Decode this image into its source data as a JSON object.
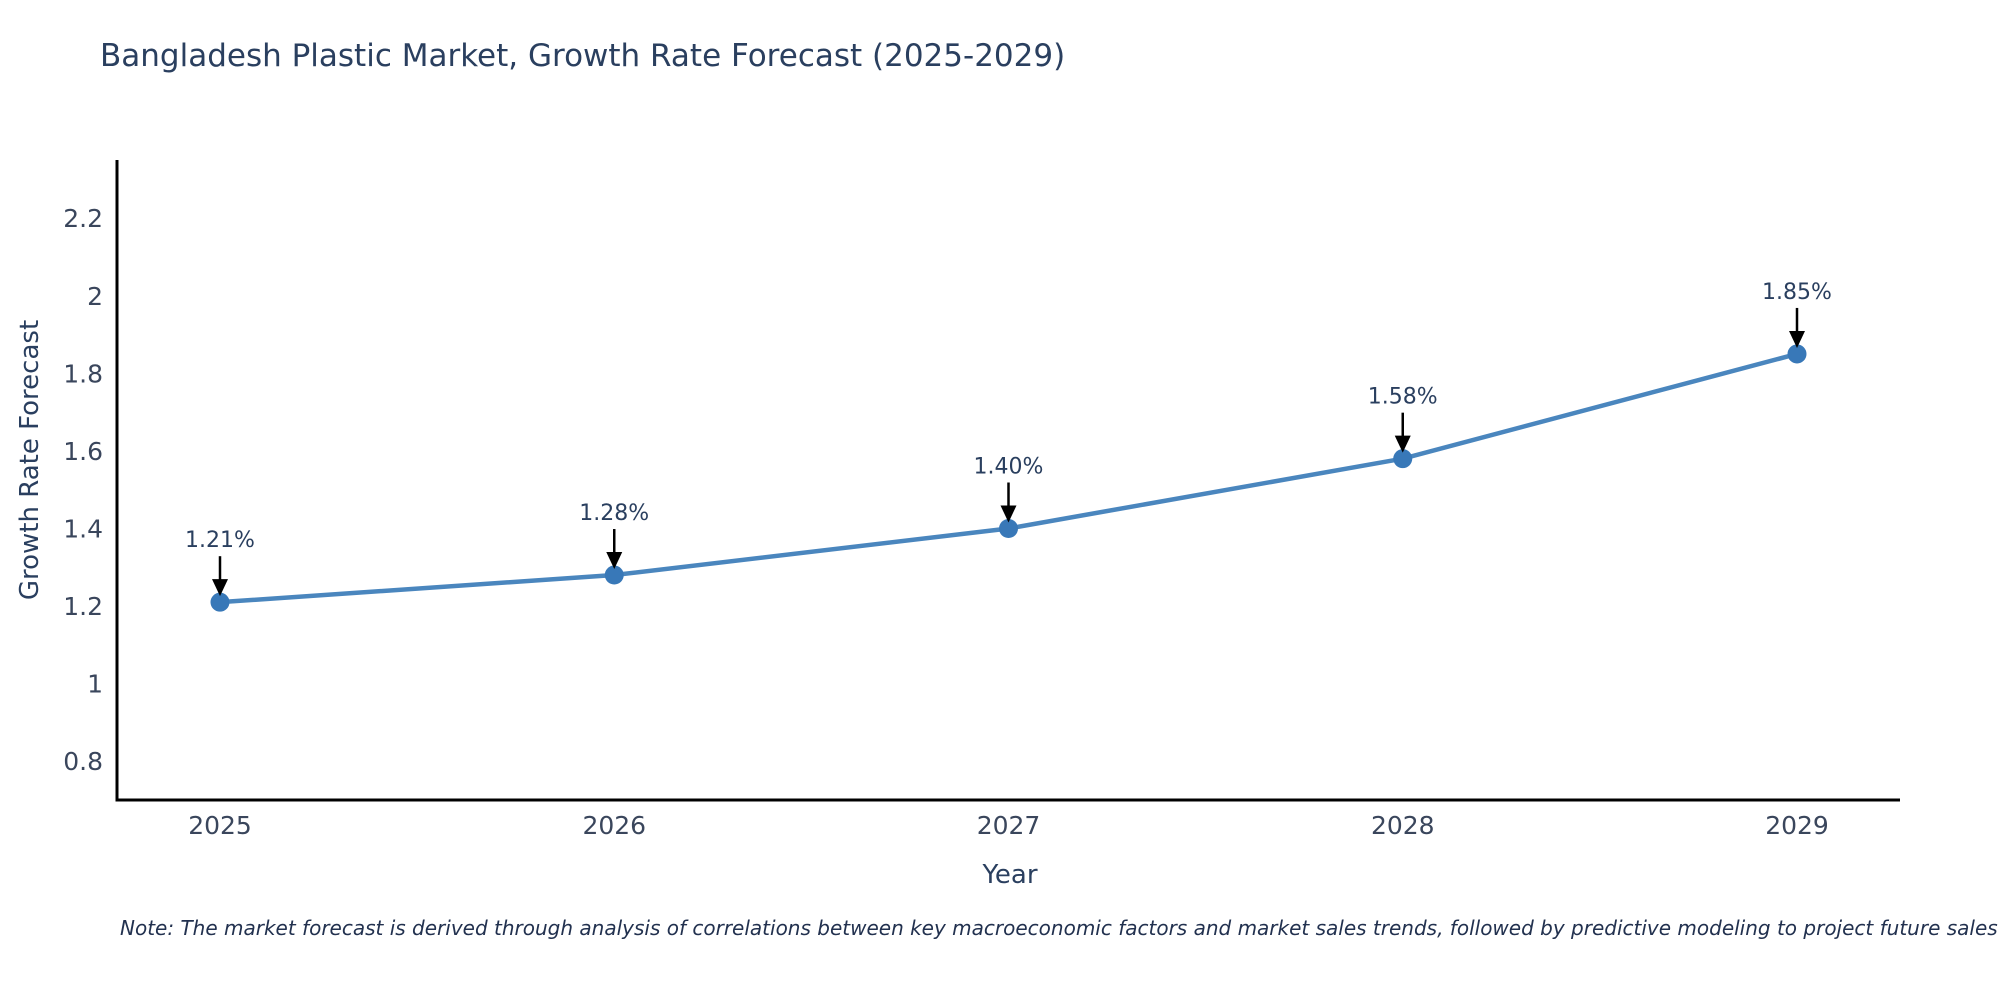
{
  "title": "Bangladesh Plastic Market, Growth Rate Forecast (2025-2029)",
  "note": "Note: The market forecast is derived through analysis of correlations between key macroeconomic factors and market sales trends, followed by predictive modeling to project future sales",
  "chart_data": {
    "type": "line",
    "title": "Bangladesh Plastic Market, Growth Rate Forecast (2025-2029)",
    "xlabel": "Year",
    "ylabel": "Growth Rate Forecast",
    "x": [
      2025,
      2026,
      2027,
      2028,
      2029
    ],
    "xtick_labels": [
      "2025",
      "2026",
      "2027",
      "2028",
      "2029"
    ],
    "series": [
      {
        "name": "Growth Rate Forecast",
        "values": [
          1.21,
          1.28,
          1.4,
          1.58,
          1.85
        ],
        "point_labels": [
          "1.21%",
          "1.28%",
          "1.40%",
          "1.58%",
          "1.85%"
        ]
      }
    ],
    "ylim": [
      0.7,
      2.35
    ],
    "yticks": [
      0.8,
      1,
      1.2,
      1.4,
      1.6,
      1.8,
      2,
      2.2
    ],
    "ytick_labels": [
      "0.8",
      "1",
      "1.2",
      "1.4",
      "1.6",
      "1.8",
      "2",
      "2.2"
    ],
    "grid": false,
    "legend": "none",
    "annotation_arrows": true,
    "colors": {
      "line": "#4a86be",
      "marker": "#3878b8",
      "axis": "#000000",
      "arrow": "#000000",
      "title_text": "#2a3f5f",
      "tick_text": "#3a465c"
    }
  }
}
